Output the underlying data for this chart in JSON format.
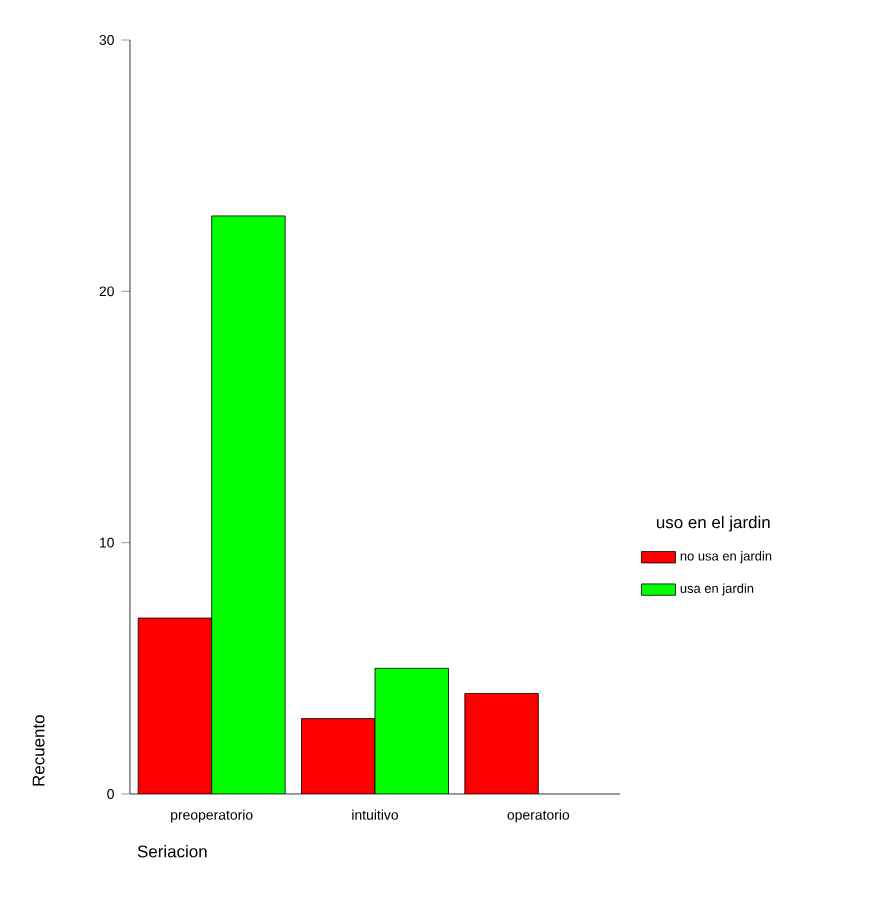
{
  "chart_data": {
    "type": "bar",
    "categories": [
      "preoperatorio",
      "intuitivo",
      "operatorio"
    ],
    "series": [
      {
        "name": "no usa en jardin",
        "color": "#ff0000",
        "values": [
          7,
          3,
          4
        ]
      },
      {
        "name": "usa en jardin",
        "color": "#00ff00",
        "values": [
          23,
          5,
          null
        ]
      }
    ],
    "xlabel": "Seriacion",
    "ylabel": "Recuento",
    "legend_title": "uso en el jardin",
    "legend": "right",
    "ylim": [
      0,
      30
    ],
    "yticks": [
      0,
      10,
      20,
      30
    ],
    "grid": false
  }
}
